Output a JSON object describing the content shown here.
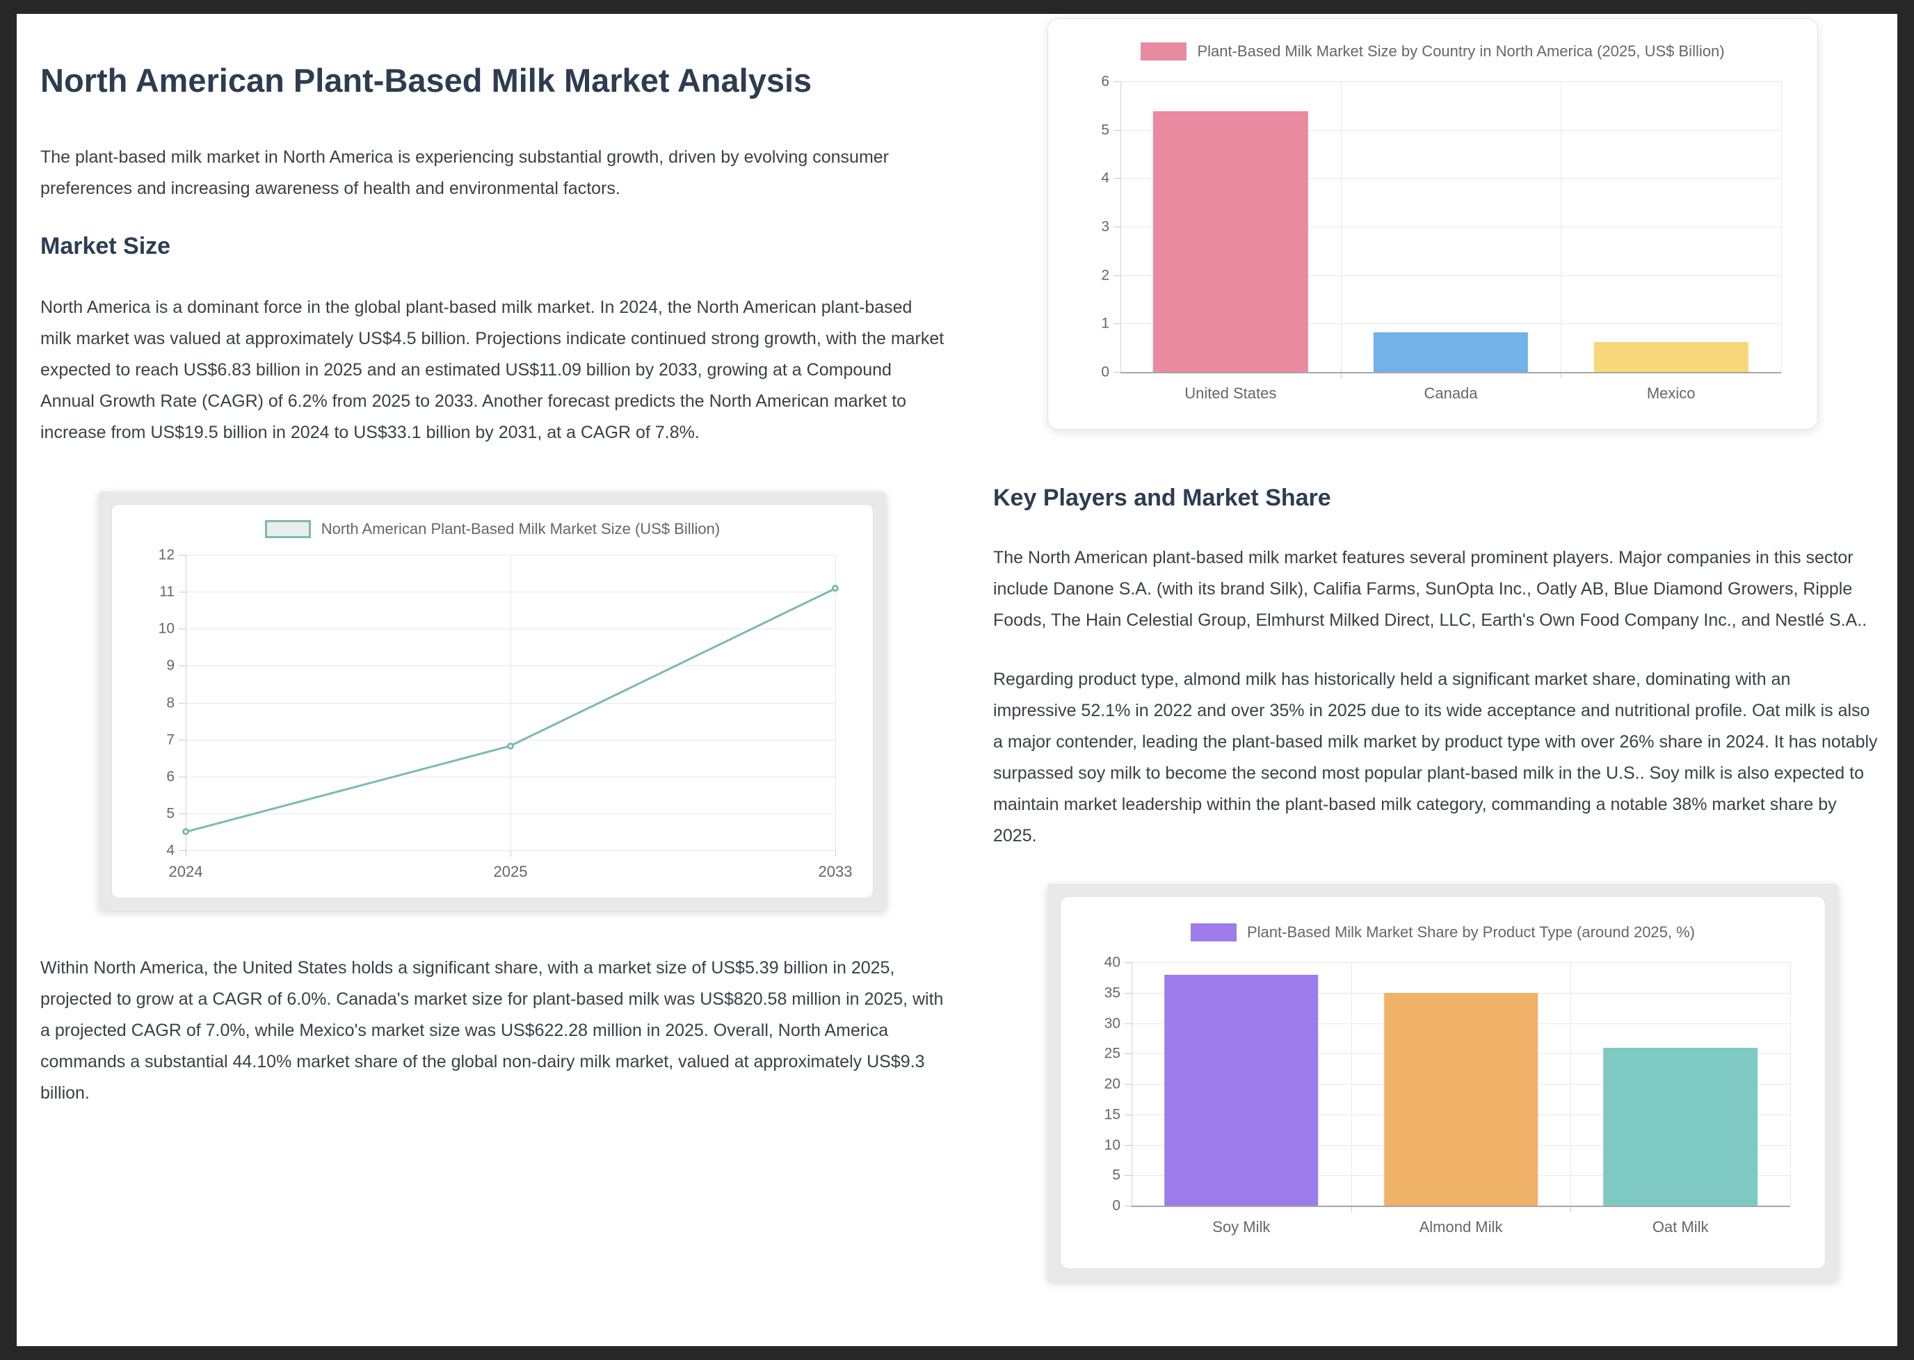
{
  "doc": {
    "title": "North American Plant-Based Milk Market Analysis",
    "intro": "The plant-based milk market in North America is experiencing substantial growth, driven by evolving consumer preferences and increasing awareness of health and environmental factors.",
    "market_size": {
      "heading": "Market Size",
      "paragraph_overview": "North America is a dominant force in the global plant-based milk market. In 2024, the North American plant-based milk market was valued at approximately US$4.5 billion. Projections indicate continued strong growth, with the market expected to reach US$6.83 billion in 2025 and an estimated US$11.09 billion by 2033, growing at a Compound Annual Growth Rate (CAGR) of 6.2% from 2025 to 2033. Another forecast predicts the North American market to increase from US$19.5 billion in 2024 to US$33.1 billion by 2031, at a CAGR of 7.8%.",
      "paragraph_country": "Within North America, the United States holds a significant share, with a market size of US$5.39 billion in 2025, projected to grow at a CAGR of 6.0%. Canada's market size for plant-based milk was US$820.58 million in 2025, with a projected CAGR of 7.0%, while Mexico's market size was US$622.28 million in 2025. Overall, North America commands a substantial 44.10% market share of the global non-dairy milk market, valued at approximately US$9.3 billion."
    },
    "key_players": {
      "heading": "Key Players and Market Share",
      "paragraph_companies": "The North American plant-based milk market features several prominent players. Major companies in this sector include Danone S.A. (with its brand Silk), Califia Farms, SunOpta Inc., Oatly AB, Blue Diamond Growers, Ripple Foods, The Hain Celestial Group, Elmhurst Milked Direct, LLC, Earth's Own Food Company Inc., and Nestlé S.A..",
      "paragraph_product_type": "Regarding product type, almond milk has historically held a significant market share, dominating with an impressive 52.1% in 2022 and over 35% in 2025 due to its wide acceptance and nutritional profile. Oat milk is also a major contender, leading the plant-based milk market by product type with over 26% share in 2024. It has notably surpassed soy milk to become the second most popular plant-based milk in the U.S.. Soy milk is also expected to maintain market leadership within the plant-based milk category, commanding a notable 38% market share by 2025."
    }
  },
  "theme": {
    "frame_bg": "#272727",
    "page_bg": "#ffffff",
    "heading_color": "#2d3c51",
    "body_color": "#3a4048",
    "axis_label_color": "#666666",
    "gridline_color": "#e8e8e8"
  },
  "chart_data": [
    {
      "id": "market-size-line",
      "type": "line",
      "legend": "North American Plant-Based Milk Market Size (US$ Billion)",
      "x": [
        "2024",
        "2025",
        "2033"
      ],
      "values": [
        4.5,
        6.83,
        11.09
      ],
      "ylim": [
        4,
        12
      ],
      "yticks": [
        4,
        5,
        6,
        7,
        8,
        9,
        10,
        11,
        12
      ],
      "line_color": "#7db9b3",
      "legend_fill": "#e9edec",
      "marker": "hollow-circle",
      "grid": true,
      "legend_position": "top-center"
    },
    {
      "id": "market-size-by-country",
      "type": "bar",
      "legend": "Plant-Based Milk Market Size by Country in North America (2025, US$ Billion)",
      "categories": [
        "United States",
        "Canada",
        "Mexico"
      ],
      "values": [
        5.39,
        0.82,
        0.62
      ],
      "bar_colors": [
        "#e98ba0",
        "#72b2e8",
        "#f6d87a"
      ],
      "ylim": [
        0,
        6
      ],
      "yticks": [
        0,
        1,
        2,
        3,
        4,
        5,
        6
      ],
      "grid": true,
      "legend_position": "top-center"
    },
    {
      "id": "market-share-by-product",
      "type": "bar",
      "legend": "Plant-Based Milk Market Share by Product Type (around 2025, %)",
      "categories": [
        "Soy Milk",
        "Almond Milk",
        "Oat Milk"
      ],
      "values": [
        38,
        35,
        26
      ],
      "bar_colors": [
        "#9d7bea",
        "#f0b169",
        "#7ecac3"
      ],
      "ylim": [
        0,
        40
      ],
      "yticks": [
        0,
        5,
        10,
        15,
        20,
        25,
        30,
        35,
        40
      ],
      "grid": true,
      "legend_position": "top-center"
    }
  ]
}
